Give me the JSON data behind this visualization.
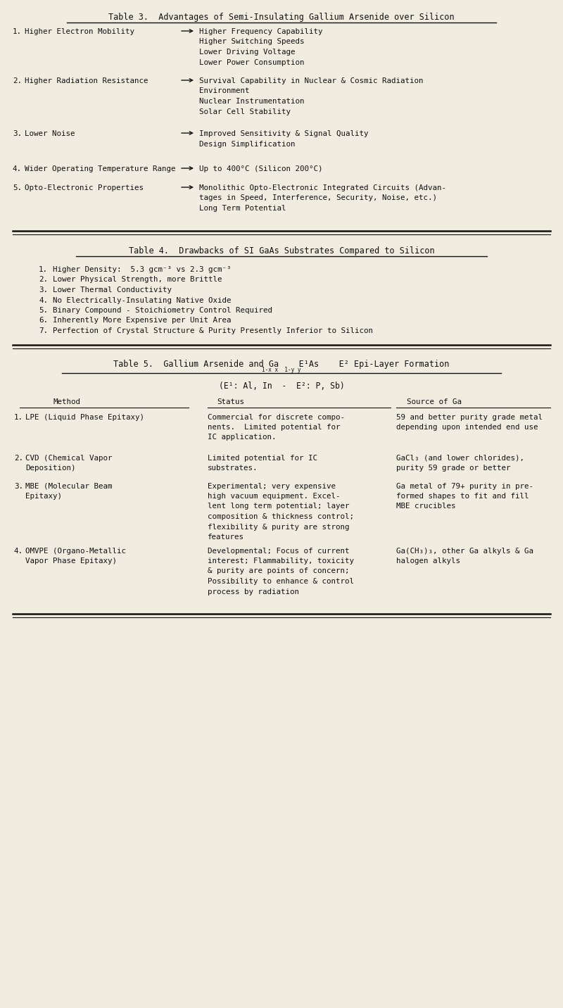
{
  "bg_color": "#f0ece0",
  "text_color": "#111111",
  "font_family": "DejaVu Sans Mono",
  "title_fontsize": 8.5,
  "body_fontsize": 7.8,
  "small_fontsize": 6.5,
  "fig_w": 8.0,
  "fig_h": 14.32,
  "dpi": 100,
  "table3_title": "Table 3.  Advantages of Semi-Insulating Gallium Arsenide over Silicon",
  "table3_items": [
    {
      "num": "1.",
      "left": "Higher Electron Mobility",
      "right_lines": [
        "Higher Frequency Capability",
        "Higher Switching Speeds",
        "Lower Driving Voltage",
        "Lower Power Consumption"
      ]
    },
    {
      "num": "2.",
      "left": "Higher Radiation Resistance",
      "right_lines": [
        "Survival Capability in Nuclear & Cosmic Radiation",
        "Environment",
        "Nuclear Instrumentation",
        "Solar Cell Stability"
      ]
    },
    {
      "num": "3.",
      "left": "Lower Noise",
      "right_lines": [
        "Improved Sensitivity & Signal Quality",
        "Design Simplification"
      ]
    },
    {
      "num": "4.",
      "left": "Wider Operating Temperature Range",
      "right_lines": [
        "Up to 400°C (Silicon 200°C)"
      ]
    },
    {
      "num": "5.",
      "left": "Opto-Electronic Properties",
      "right_lines": [
        "Monolithic Opto-Electronic Integrated Circuits (Advan-",
        "tages in Speed, Interference, Security, Noise, etc.)",
        "Long Term Potential"
      ]
    }
  ],
  "table4_title": "Table 4.  Drawbacks of SI GaAs Substrates Compared to Silicon",
  "table4_items": [
    "Higher Density:  5.3 gcm⁻³ vs 2.3 gcm⁻³",
    "Lower Physical Strength, more Brittle",
    "Lower Thermal Conductivity",
    "No Electrically-Insulating Native Oxide",
    "Binary Compound - Stoichiometry Control Required",
    "Inherently More Expensive per Unit Area",
    "Perfection of Crystal Structure & Purity Presently Inferior to Silicon"
  ],
  "table5_title_main": "Table 5.  Gallium Arsenide and Ga    E¹As    E² Epi-Layer Formation",
  "table5_title_sub": "1-x x  1-y y",
  "table5_subtitle": "(E¹: Al, In  -  E²: P, Sb)",
  "table5_cols": [
    "Method",
    "Status",
    "Source of Ga"
  ],
  "table5_rows": [
    {
      "num": "1.",
      "method": [
        "LPE (Liquid Phase Epitaxy)"
      ],
      "status": [
        "Commercial for discrete compo-",
        "nents.  Limited potential for",
        "IC application."
      ],
      "source": [
        "59 and better purity grade metal",
        "depending upon intended end use"
      ]
    },
    {
      "num": "2.",
      "method": [
        "CVD (Chemical Vapor",
        "Deposition)"
      ],
      "status": [
        "Limited potential for IC",
        "substrates."
      ],
      "source": [
        "GaCl₃ (and lower chlorides),",
        "purity 59 grade or better"
      ]
    },
    {
      "num": "3.",
      "method": [
        "MBE (Molecular Beam",
        "Epitaxy)"
      ],
      "status": [
        "Experimental; very expensive",
        "high vacuum equipment. Excel-",
        "lent long term potential; layer",
        "composition & thickness control;",
        "flexibility & purity are strong",
        "features"
      ],
      "source": [
        "Ga metal of 79+ purity in pre-",
        "formed shapes to fit and fill",
        "MBE crucibles"
      ]
    },
    {
      "num": "4.",
      "method": [
        "OMVPE (Organo-Metallic",
        "Vapor Phase Epitaxy)"
      ],
      "status": [
        "Developmental; Focus of current",
        "interest; Flammability, toxicity",
        "& purity are points of concern;",
        "Possibility to enhance & control",
        "process by radiation"
      ],
      "source": [
        "Ga(CH₃)₃, other Ga alkyls & Ga",
        "halogen alkyls"
      ]
    }
  ]
}
